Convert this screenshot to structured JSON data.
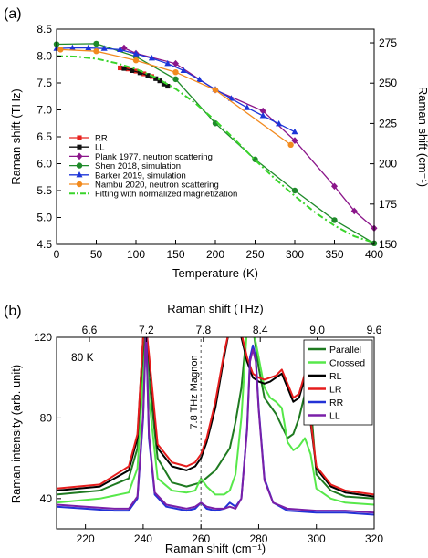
{
  "chart_data": [
    {
      "panel_label": "(a)",
      "type": "line",
      "xlabel": "Temperature (K)",
      "ylabel": "Raman shift (THz)",
      "y2label": "Raman shift (cm⁻¹)",
      "xlim": [
        0,
        400
      ],
      "ylim": [
        4.5,
        8.5
      ],
      "y2lim": [
        150,
        283.5
      ],
      "xticks": [
        "0",
        "50",
        "100",
        "150",
        "200",
        "250",
        "300",
        "350",
        "400"
      ],
      "yticks": [
        "4.5",
        "5.0",
        "5.5",
        "6.0",
        "6.5",
        "7.0",
        "7.5",
        "8.0",
        "8.5"
      ],
      "y2ticks": [
        "150",
        "175",
        "200",
        "225",
        "250",
        "275"
      ],
      "legend_position": "bottom-left",
      "series": [
        {
          "name": "RR",
          "color": "#e8231f",
          "marker": "square",
          "x": [
            80,
            90,
            100,
            110,
            120
          ],
          "y": [
            7.78,
            7.76,
            7.72,
            7.67,
            7.62
          ]
        },
        {
          "name": "LL",
          "color": "#111111",
          "marker": "square",
          "x": [
            85,
            95,
            105,
            115,
            125,
            130,
            135,
            140
          ],
          "y": [
            7.77,
            7.73,
            7.69,
            7.64,
            7.58,
            7.54,
            7.48,
            7.44
          ]
        },
        {
          "name": "Plank 1977, neutron scattering",
          "color": "#8b168a",
          "marker": "diamond",
          "x": [
            85,
            100,
            150,
            200,
            260,
            300,
            350,
            375,
            400
          ],
          "y": [
            8.15,
            8.05,
            7.86,
            7.37,
            6.98,
            6.43,
            5.58,
            5.12,
            4.8
          ]
        },
        {
          "name": "Shen 2018, simulation",
          "color": "#1f8a2a",
          "marker": "circle",
          "x": [
            0,
            50,
            100,
            150,
            200,
            250,
            300,
            350,
            400
          ],
          "y": [
            8.22,
            8.23,
            7.99,
            7.57,
            6.75,
            6.08,
            5.5,
            4.95,
            4.52
          ]
        },
        {
          "name": "Barker 2019, simulation",
          "color": "#1d35d8",
          "marker": "triangle",
          "x": [
            0,
            20,
            40,
            60,
            80,
            100,
            120,
            140,
            160,
            180,
            200,
            220,
            240,
            260,
            280,
            300
          ],
          "y": [
            8.14,
            8.15,
            8.15,
            8.14,
            8.12,
            8.04,
            7.96,
            7.86,
            7.73,
            7.56,
            7.38,
            7.21,
            7.04,
            6.89,
            6.74,
            6.59
          ]
        },
        {
          "name": "Nambu 2020, neutron scattering",
          "color": "#f28a1e",
          "marker": "circle",
          "x": [
            5,
            50,
            100,
            150,
            200,
            295
          ],
          "y": [
            8.12,
            8.09,
            7.92,
            7.7,
            7.37,
            6.35
          ]
        },
        {
          "name": "Fitting with normalized magnetization",
          "color": "#39d42a",
          "marker": "none",
          "dashed": true,
          "x": [
            0,
            25,
            50,
            75,
            100,
            125,
            150,
            175,
            200,
            225,
            250,
            275,
            300,
            325,
            350,
            375,
            400
          ],
          "y": [
            8.0,
            7.99,
            7.95,
            7.87,
            7.76,
            7.6,
            7.39,
            7.12,
            6.8,
            6.44,
            6.07,
            5.72,
            5.4,
            5.1,
            4.85,
            4.65,
            4.53
          ]
        }
      ]
    },
    {
      "panel_label": "(b)",
      "type": "line",
      "xlabel": "Raman shift (cm⁻¹)",
      "x2label": "Raman shift (THz)",
      "ylabel": "Raman intensity (arb. unit)",
      "xlim": [
        210,
        320
      ],
      "ylim": [
        25,
        120
      ],
      "xticks": [
        "220",
        "240",
        "260",
        "280",
        "300",
        "320"
      ],
      "x2ticks": [
        "6.6",
        "7.2",
        "7.8",
        "8.4",
        "9.0",
        "9.6"
      ],
      "yticks": [
        "40",
        "80",
        "120"
      ],
      "temperature_label": "80 K",
      "annotation": "7.8 THz Magnon",
      "annotation_x": 260,
      "legend_position": "top-right",
      "series": [
        {
          "name": "Parallel",
          "color": "#1f7a21",
          "x": [
            210,
            225,
            235,
            238,
            240,
            241,
            242,
            245,
            250,
            255,
            260,
            265,
            270,
            272,
            274,
            276,
            278,
            280,
            282,
            284,
            286,
            290,
            292,
            294,
            296,
            297,
            298,
            300,
            305,
            310,
            320
          ],
          "y": [
            42,
            44,
            50,
            65,
            110,
            125,
            100,
            60,
            48,
            46,
            48,
            54,
            65,
            78,
            95,
            125,
            125,
            105,
            90,
            86,
            82,
            70,
            72,
            80,
            92,
            95,
            88,
            52,
            44,
            41,
            40
          ]
        },
        {
          "name": "Crossed",
          "color": "#57e84a",
          "x": [
            210,
            225,
            235,
            238,
            240,
            241,
            242,
            245,
            250,
            255,
            258,
            260,
            262,
            265,
            268,
            270,
            272,
            274,
            276,
            278,
            280,
            282,
            284,
            286,
            288,
            290,
            292,
            294,
            296,
            298,
            300,
            305,
            310,
            320
          ],
          "y": [
            38,
            40,
            43,
            55,
            100,
            120,
            90,
            50,
            44,
            43,
            44,
            50,
            46,
            42,
            42,
            44,
            52,
            80,
            125,
            125,
            110,
            95,
            90,
            88,
            85,
            68,
            64,
            66,
            70,
            62,
            45,
            40,
            38,
            37
          ]
        },
        {
          "name": "RL",
          "color": "#000000",
          "x": [
            210,
            225,
            235,
            238,
            240,
            241,
            242,
            245,
            250,
            255,
            258,
            260,
            262,
            265,
            268,
            270,
            272,
            274,
            276,
            278,
            280,
            282,
            284,
            286,
            288,
            290,
            292,
            294,
            296,
            300,
            305,
            310,
            320
          ],
          "y": [
            44,
            46,
            54,
            70,
            120,
            125,
            110,
            65,
            56,
            54,
            56,
            60,
            68,
            85,
            110,
            125,
            125,
            120,
            108,
            100,
            98,
            97,
            98,
            100,
            102,
            95,
            88,
            90,
            100,
            55,
            46,
            43,
            41
          ]
        },
        {
          "name": "LR",
          "color": "#e51d1d",
          "x": [
            210,
            225,
            235,
            238,
            240,
            241,
            242,
            245,
            250,
            255,
            258,
            260,
            262,
            265,
            268,
            270,
            272,
            274,
            276,
            278,
            280,
            282,
            284,
            286,
            288,
            290,
            292,
            294,
            296,
            300,
            305,
            310,
            320
          ],
          "y": [
            45,
            47,
            56,
            72,
            120,
            125,
            112,
            67,
            58,
            56,
            58,
            62,
            70,
            88,
            112,
            125,
            125,
            122,
            110,
            102,
            100,
            99,
            100,
            101,
            104,
            97,
            90,
            92,
            102,
            56,
            47,
            44,
            42
          ]
        },
        {
          "name": "RR",
          "color": "#2332d6",
          "x": [
            210,
            220,
            230,
            235,
            238,
            240,
            241,
            242,
            244,
            248,
            255,
            258,
            260,
            262,
            265,
            268,
            270,
            272,
            274,
            276,
            277,
            278,
            279,
            280,
            282,
            285,
            290,
            300,
            310,
            320
          ],
          "y": [
            36,
            35,
            34,
            34,
            40,
            80,
            125,
            70,
            42,
            36,
            34,
            35,
            38,
            35,
            34,
            35,
            38,
            36,
            40,
            75,
            110,
            116,
            110,
            85,
            50,
            38,
            34,
            33,
            33,
            32
          ]
        },
        {
          "name": "LL",
          "color": "#7a1fa8",
          "x": [
            210,
            220,
            230,
            235,
            238,
            240,
            241,
            242,
            244,
            248,
            255,
            258,
            260,
            262,
            265,
            268,
            270,
            272,
            274,
            276,
            277,
            278,
            279,
            280,
            282,
            285,
            290,
            300,
            310,
            320
          ],
          "y": [
            37,
            36,
            35,
            35,
            41,
            82,
            125,
            72,
            43,
            37,
            35,
            36,
            38,
            36,
            35,
            35,
            36,
            35,
            40,
            74,
            108,
            114,
            108,
            84,
            49,
            38,
            35,
            34,
            34,
            33
          ]
        }
      ]
    }
  ]
}
